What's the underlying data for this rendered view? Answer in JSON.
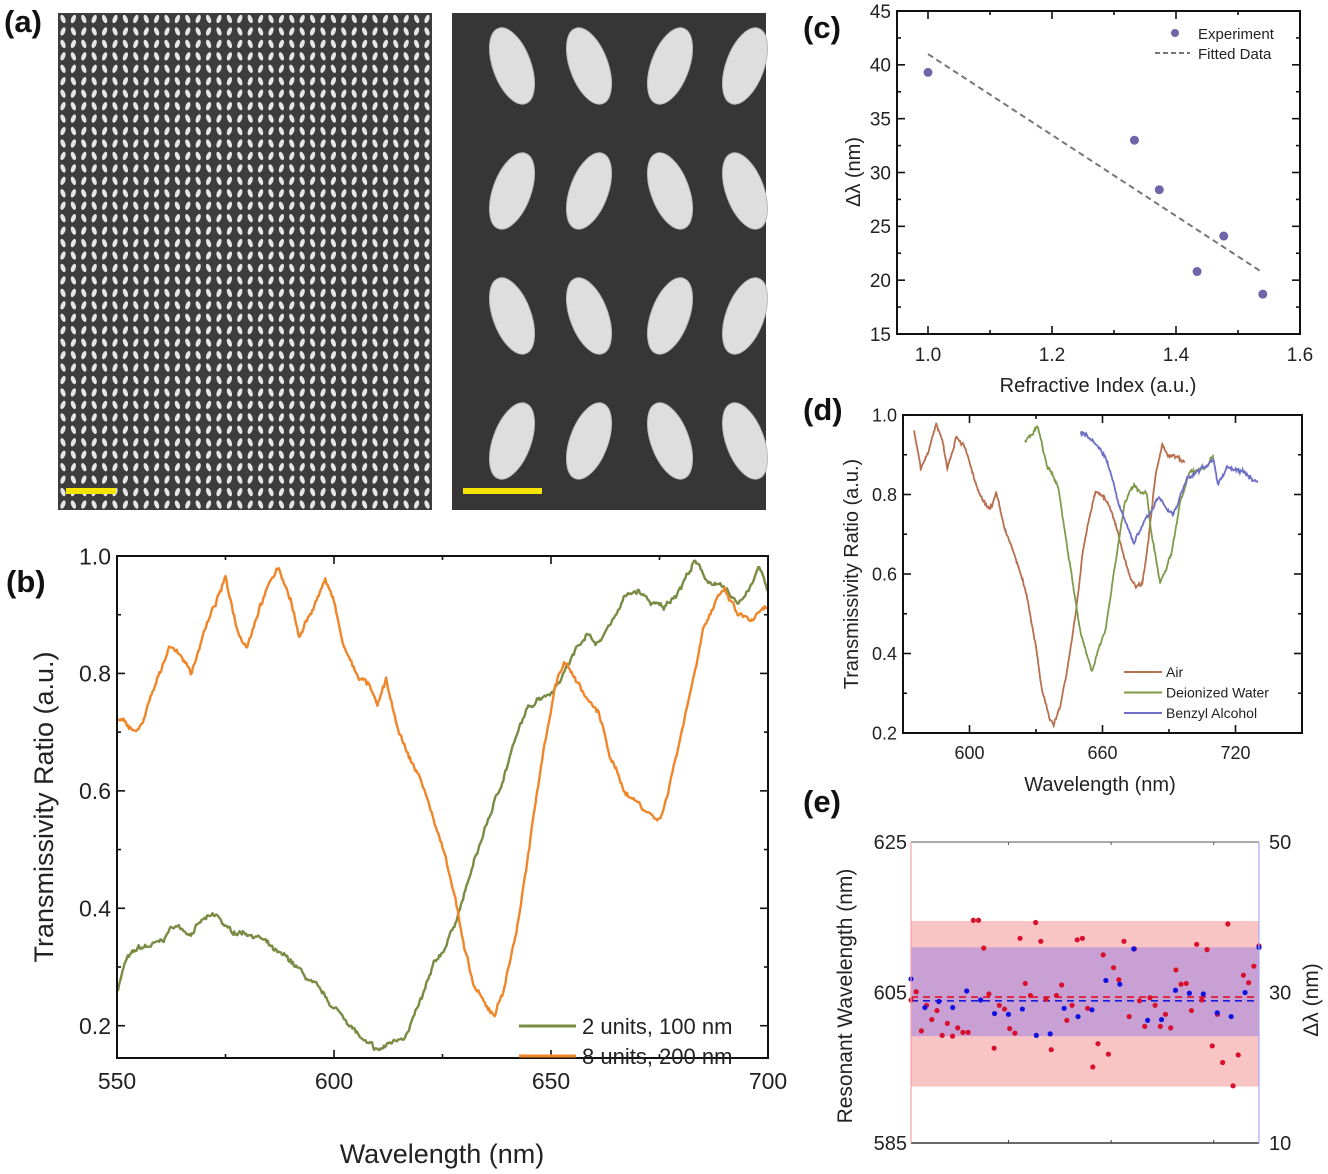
{
  "panel_labels": {
    "a": "(a)",
    "b": "(b)",
    "c": "(c)",
    "d": "(d)",
    "e": "(e)"
  },
  "sem_images": {
    "left_scale_bar_color": "#f5e400",
    "right_scale_bar_color": "#f5e400"
  },
  "chart_data": [
    {
      "panel": "b",
      "type": "line",
      "xlabel": "Wavelength (nm)",
      "ylabel": "Transmissivity Ratio (a.u.)",
      "xlim": [
        550,
        700
      ],
      "ylim": [
        0.145,
        1.0
      ],
      "xticks": [
        "550",
        "600",
        "650",
        "700"
      ],
      "yticks": [
        "0.2",
        "0.4",
        "0.6",
        "0.8",
        "1.0"
      ],
      "grid": false,
      "legend": "bottom-right",
      "series": [
        {
          "name": "2 units, 100 nm",
          "color": "#7a8c44",
          "points": [
            [
              550,
              0.26
            ],
            [
              552,
              0.31
            ],
            [
              555,
              0.33
            ],
            [
              560,
              0.34
            ],
            [
              563,
              0.37
            ],
            [
              567,
              0.36
            ],
            [
              570,
              0.38
            ],
            [
              573,
              0.385
            ],
            [
              576,
              0.36
            ],
            [
              580,
              0.36
            ],
            [
              583,
              0.35
            ],
            [
              587,
              0.32
            ],
            [
              590,
              0.31
            ],
            [
              595,
              0.27
            ],
            [
              600,
              0.23
            ],
            [
              603,
              0.21
            ],
            [
              607,
              0.17
            ],
            [
              610,
              0.155
            ],
            [
              613,
              0.17
            ],
            [
              617,
              0.19
            ],
            [
              620,
              0.24
            ],
            [
              623,
              0.3
            ],
            [
              626,
              0.34
            ],
            [
              629,
              0.4
            ],
            [
              632,
              0.47
            ],
            [
              635,
              0.54
            ],
            [
              638,
              0.6
            ],
            [
              641,
              0.67
            ],
            [
              644,
              0.73
            ],
            [
              647,
              0.76
            ],
            [
              650,
              0.77
            ],
            [
              652,
              0.79
            ],
            [
              655,
              0.83
            ],
            [
              658,
              0.87
            ],
            [
              661,
              0.85
            ],
            [
              664,
              0.89
            ],
            [
              667,
              0.93
            ],
            [
              670,
              0.94
            ],
            [
              673,
              0.92
            ],
            [
              676,
              0.91
            ],
            [
              680,
              0.95
            ],
            [
              683,
              0.99
            ],
            [
              686,
              0.96
            ],
            [
              690,
              0.94
            ],
            [
              693,
              0.92
            ],
            [
              696,
              0.95
            ],
            [
              698,
              0.98
            ],
            [
              700,
              0.94
            ]
          ]
        },
        {
          "name": "8 units, 200 nm",
          "color": "#f0862a",
          "points": [
            [
              550,
              0.72
            ],
            [
              555,
              0.7
            ],
            [
              560,
              0.8
            ],
            [
              562,
              0.85
            ],
            [
              565,
              0.83
            ],
            [
              567,
              0.8
            ],
            [
              570,
              0.87
            ],
            [
              575,
              0.96
            ],
            [
              578,
              0.87
            ],
            [
              580,
              0.85
            ],
            [
              583,
              0.92
            ],
            [
              587,
              0.98
            ],
            [
              590,
              0.93
            ],
            [
              592,
              0.86
            ],
            [
              595,
              0.91
            ],
            [
              598,
              0.96
            ],
            [
              600,
              0.92
            ],
            [
              602,
              0.85
            ],
            [
              605,
              0.8
            ],
            [
              608,
              0.78
            ],
            [
              610,
              0.74
            ],
            [
              612,
              0.79
            ],
            [
              614,
              0.72
            ],
            [
              617,
              0.66
            ],
            [
              620,
              0.62
            ],
            [
              623,
              0.55
            ],
            [
              626,
              0.48
            ],
            [
              628,
              0.42
            ],
            [
              630,
              0.33
            ],
            [
              632,
              0.27
            ],
            [
              635,
              0.23
            ],
            [
              637,
              0.22
            ],
            [
              639,
              0.26
            ],
            [
              642,
              0.36
            ],
            [
              645,
              0.5
            ],
            [
              648,
              0.66
            ],
            [
              651,
              0.78
            ],
            [
              653,
              0.82
            ],
            [
              655,
              0.8
            ],
            [
              658,
              0.76
            ],
            [
              661,
              0.73
            ],
            [
              664,
              0.65
            ],
            [
              667,
              0.6
            ],
            [
              670,
              0.58
            ],
            [
              673,
              0.56
            ],
            [
              675,
              0.55
            ],
            [
              677,
              0.6
            ],
            [
              680,
              0.7
            ],
            [
              683,
              0.8
            ],
            [
              685,
              0.88
            ],
            [
              688,
              0.92
            ],
            [
              690,
              0.94
            ],
            [
              693,
              0.9
            ],
            [
              696,
              0.89
            ],
            [
              700,
              0.91
            ]
          ]
        }
      ]
    },
    {
      "panel": "c",
      "type": "scatter",
      "xlabel": "Refractive Index (a.u.)",
      "ylabel": "Δλ (nm)",
      "xlim": [
        0.95,
        1.6
      ],
      "ylim": [
        15,
        45
      ],
      "xticks": [
        "1.0",
        "1.2",
        "1.4",
        "1.6"
      ],
      "yticks": [
        "15",
        "20",
        "25",
        "30",
        "35",
        "40",
        "45"
      ],
      "grid": false,
      "legend": "top-right",
      "series": [
        {
          "name": "Experiment",
          "color": "#6e64a8",
          "points": [
            [
              1.0,
              39.3
            ],
            [
              1.333,
              33.0
            ],
            [
              1.373,
              28.4
            ],
            [
              1.434,
              20.8
            ],
            [
              1.477,
              24.1
            ],
            [
              1.54,
              18.7
            ]
          ]
        },
        {
          "name": "Fitted Data",
          "color": "#777777",
          "style": "dashed",
          "points": [
            [
              1.0,
              41.0
            ],
            [
              1.54,
              20.7
            ]
          ]
        }
      ]
    },
    {
      "panel": "d",
      "type": "line",
      "xlabel": "Wavelength (nm)",
      "ylabel": "Transmissivity Ratio (a.u.)",
      "xlim": [
        570,
        750
      ],
      "ylim": [
        0.2,
        1.0
      ],
      "xticks": [
        "600",
        "660",
        "720"
      ],
      "yticks": [
        "0.2",
        "0.4",
        "0.6",
        "0.8",
        "1.0"
      ],
      "grid": false,
      "legend": "bottom-right",
      "series": [
        {
          "name": "Air",
          "color": "#b86f4e",
          "points": [
            [
              575,
              0.96
            ],
            [
              578,
              0.86
            ],
            [
              582,
              0.92
            ],
            [
              585,
              0.98
            ],
            [
              588,
              0.93
            ],
            [
              590,
              0.87
            ],
            [
              594,
              0.95
            ],
            [
              597,
              0.93
            ],
            [
              600,
              0.88
            ],
            [
              603,
              0.82
            ],
            [
              606,
              0.78
            ],
            [
              609,
              0.76
            ],
            [
              612,
              0.8
            ],
            [
              615,
              0.73
            ],
            [
              618,
              0.68
            ],
            [
              622,
              0.62
            ],
            [
              626,
              0.54
            ],
            [
              630,
              0.42
            ],
            [
              633,
              0.3
            ],
            [
              636,
              0.24
            ],
            [
              638,
              0.22
            ],
            [
              641,
              0.27
            ],
            [
              644,
              0.36
            ],
            [
              648,
              0.5
            ],
            [
              651,
              0.65
            ],
            [
              654,
              0.74
            ],
            [
              657,
              0.81
            ],
            [
              660,
              0.8
            ],
            [
              663,
              0.77
            ],
            [
              666,
              0.72
            ],
            [
              669,
              0.66
            ],
            [
              672,
              0.6
            ],
            [
              675,
              0.57
            ],
            [
              678,
              0.58
            ],
            [
              681,
              0.7
            ],
            [
              684,
              0.85
            ],
            [
              687,
              0.92
            ],
            [
              690,
              0.9
            ],
            [
              694,
              0.89
            ],
            [
              697,
              0.88
            ]
          ]
        },
        {
          "name": "Deionized Water",
          "color": "#7f9a4a",
          "points": [
            [
              625,
              0.93
            ],
            [
              630.7,
              0.97
            ],
            [
              635,
              0.87
            ],
            [
              640,
              0.82
            ],
            [
              646,
              0.6
            ],
            [
              650,
              0.45
            ],
            [
              655,
              0.36
            ],
            [
              661,
              0.45
            ],
            [
              665,
              0.6
            ],
            [
              670,
              0.78
            ],
            [
              674,
              0.82
            ],
            [
              680,
              0.8
            ],
            [
              682,
              0.7
            ],
            [
              686,
              0.58
            ],
            [
              691,
              0.65
            ],
            [
              695,
              0.78
            ],
            [
              700,
              0.86
            ],
            [
              707,
              0.87
            ],
            [
              710,
              0.9
            ]
          ]
        },
        {
          "name": "Benzyl Alcohol",
          "color": "#6f6fc8",
          "points": [
            [
              650,
              0.96
            ],
            [
              656,
              0.94
            ],
            [
              662,
              0.89
            ],
            [
              668,
              0.76
            ],
            [
              674,
              0.68
            ],
            [
              679,
              0.73
            ],
            [
              685,
              0.79
            ],
            [
              692,
              0.75
            ],
            [
              698,
              0.84
            ],
            [
              704,
              0.86
            ],
            [
              710,
              0.89
            ],
            [
              712,
              0.82
            ],
            [
              716,
              0.87
            ],
            [
              722,
              0.86
            ],
            [
              730,
              0.83
            ]
          ]
        }
      ]
    },
    {
      "panel": "e",
      "type": "scatter",
      "xlabel": "",
      "ylabel_left": "Resonant Wavelength (nm)",
      "ylabel_right": "Δλ (nm)",
      "ylim_left": [
        585,
        625
      ],
      "ylim_right": [
        10,
        50
      ],
      "yticks_left": [
        "585",
        "605",
        "625"
      ],
      "yticks_right": [
        "10",
        "30",
        "50"
      ],
      "left_color": "#e0102a",
      "right_color": "#1a1ad8",
      "bands": {
        "left_range": [
          592.5,
          614.5
        ],
        "left_mean": 604.4,
        "left_band_color": "#f9c4c4",
        "right_range": [
          24.2,
          36.0
        ],
        "right_mean": 28.9,
        "overlap_color": "#c8a0d4"
      },
      "series": [
        {
          "axis": "left",
          "color": "#d8102e",
          "values": [
            604.0,
            605.1,
            599.9,
            603.3,
            601.4,
            602.6,
            599.3,
            600.9,
            599.2,
            600.3,
            599.7,
            599.7,
            614.6,
            614.6,
            610.9,
            604.8,
            597.6,
            603.3,
            602.8,
            600.2,
            599.6,
            612.2,
            606.2,
            604.6,
            614.3,
            611.8,
            604.1,
            597.4,
            604.6,
            606.0,
            601.3,
            603.3,
            612.0,
            612.2,
            602.9,
            595.1,
            598.2,
            610.0,
            596.8,
            608.3,
            606.7,
            611.8,
            601.8,
            610.8,
            603.9,
            600.5,
            604.3,
            603.3,
            600.5,
            602.1,
            600.3,
            608.0,
            606.1,
            606.2,
            602.6,
            611.4,
            604.0,
            610.7,
            597.9,
            602.1,
            595.7,
            614.1,
            592.6,
            596.7,
            607.3,
            606.3,
            608.5,
            611.2
          ]
        },
        {
          "axis": "right",
          "color": "#1010e0",
          "values": [
            31.8,
            28.0,
            28.8,
            28.0,
            30.2,
            29.0,
            27.2,
            27.1,
            27.8,
            24.3,
            24.5,
            27.9,
            26.8,
            27.7,
            31.6,
            31.1,
            35.8,
            26.3,
            26.4,
            30.3,
            29.9,
            29.8,
            27.3,
            26.8,
            30.0,
            36.0
          ]
        }
      ]
    }
  ]
}
